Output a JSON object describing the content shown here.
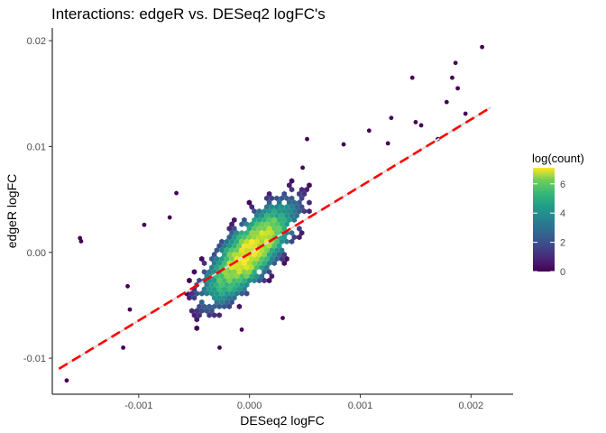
{
  "chart_data": {
    "type": "hexbin",
    "title": "Interactions: edgeR vs. DESeq2 logFC's",
    "xlabel": "DESeq2 logFC",
    "ylabel": "edgeR logFC",
    "xlim": [
      -0.00178,
      0.00238
    ],
    "ylim": [
      -0.0134,
      0.0212
    ],
    "x_ticks": [
      {
        "value": -0.001,
        "label": "-0.001"
      },
      {
        "value": 0.0,
        "label": "0.000"
      },
      {
        "value": 0.001,
        "label": "0.001"
      },
      {
        "value": 0.002,
        "label": "0.002"
      }
    ],
    "y_ticks": [
      {
        "value": -0.01,
        "label": "-0.01"
      },
      {
        "value": 0.0,
        "label": "0.00"
      },
      {
        "value": 0.01,
        "label": "0.01"
      },
      {
        "value": 0.02,
        "label": "0.02"
      }
    ],
    "grid": false,
    "fit_line": {
      "x": [
        -0.00172,
        0.00218
      ],
      "y": [
        -0.011,
        0.0137
      ],
      "color": "#ff0000",
      "style": "dashed"
    },
    "identity_line": {
      "x": [
        -0.00172,
        0.00218
      ],
      "y": [
        -0.011,
        0.0137
      ],
      "color": "#d9d9d9"
    },
    "hexbin_density": {
      "center": [
        0.0,
        0.0
      ],
      "sd_x": 0.00019,
      "sd_y": 0.0022,
      "correlation": 0.75,
      "max_log_count": 7.1
    },
    "outlier_points": [
      {
        "x": -0.00165,
        "y": -0.0121
      },
      {
        "x": -0.00153,
        "y": 0.00135
      },
      {
        "x": -0.00152,
        "y": 0.00105
      },
      {
        "x": -0.00114,
        "y": -0.009
      },
      {
        "x": -0.0011,
        "y": -0.0032
      },
      {
        "x": -0.00108,
        "y": -0.0054
      },
      {
        "x": -0.00095,
        "y": 0.0026
      },
      {
        "x": -0.00072,
        "y": 0.0033
      },
      {
        "x": -0.00066,
        "y": 0.0056
      },
      {
        "x": -0.00027,
        "y": -0.009
      },
      {
        "x": -7e-05,
        "y": -0.0073
      },
      {
        "x": 0.0003,
        "y": -0.0062
      },
      {
        "x": 0.00048,
        "y": 0.008
      },
      {
        "x": 0.00052,
        "y": 0.0107
      },
      {
        "x": 0.00085,
        "y": 0.0102
      },
      {
        "x": 0.00108,
        "y": 0.0115
      },
      {
        "x": 0.00125,
        "y": 0.0103
      },
      {
        "x": 0.00128,
        "y": 0.0127
      },
      {
        "x": 0.00147,
        "y": 0.0165
      },
      {
        "x": 0.0015,
        "y": 0.0123
      },
      {
        "x": 0.00155,
        "y": 0.012
      },
      {
        "x": 0.0017,
        "y": 0.0107
      },
      {
        "x": 0.00178,
        "y": 0.0142
      },
      {
        "x": 0.00183,
        "y": 0.0165
      },
      {
        "x": 0.00186,
        "y": 0.0179
      },
      {
        "x": 0.00188,
        "y": 0.0155
      },
      {
        "x": 0.00195,
        "y": 0.0131
      },
      {
        "x": 0.0021,
        "y": 0.0194
      }
    ],
    "legend": {
      "title": "log(count)",
      "position": "right",
      "range": [
        0,
        7.1
      ],
      "ticks": [
        {
          "value": 0,
          "label": "0"
        },
        {
          "value": 2,
          "label": "2"
        },
        {
          "value": 4,
          "label": "4"
        },
        {
          "value": 6,
          "label": "6"
        }
      ],
      "colormap": "viridis"
    }
  }
}
